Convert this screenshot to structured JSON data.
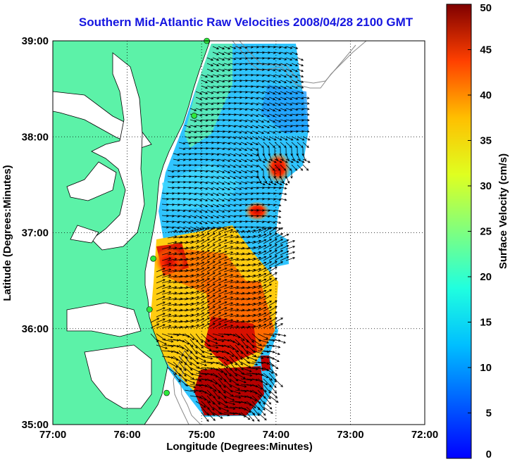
{
  "title": "Southern Mid-Atlantic Raw Velocities 2008/04/28 2100 GMT",
  "map": {
    "xlabel": "Longitude (Degrees:Minutes)",
    "ylabel": "Latitude (Degrees:Minutes)",
    "lon_range": [
      -77,
      -72
    ],
    "lat_range": [
      35,
      39
    ],
    "lon_ticks": [
      {
        "value": -77,
        "label": "77:00"
      },
      {
        "value": -76,
        "label": "76:00"
      },
      {
        "value": -75,
        "label": "75:00"
      },
      {
        "value": -74,
        "label": "74:00"
      },
      {
        "value": -73,
        "label": "73:00"
      },
      {
        "value": -72,
        "label": "72:00"
      }
    ],
    "lat_ticks": [
      {
        "value": 35,
        "label": "35:00"
      },
      {
        "value": 36,
        "label": "36:00"
      },
      {
        "value": 37,
        "label": "37:00"
      },
      {
        "value": 38,
        "label": "38:00"
      },
      {
        "value": 39,
        "label": "39:00"
      }
    ],
    "grid": "dotted",
    "land_color": "#5cf2a8",
    "ocean_color": "#ffffff",
    "station_color": "#2ee83c",
    "stations": [
      {
        "lon": -74.93,
        "lat": 39.0
      },
      {
        "lon": -75.1,
        "lat": 38.22
      },
      {
        "lon": -75.65,
        "lat": 36.73
      },
      {
        "lon": -75.7,
        "lat": 36.2
      },
      {
        "lon": -75.47,
        "lat": 35.33
      }
    ]
  },
  "colorbar": {
    "label": "Surface Velocity (cm/s)",
    "min": 0,
    "max": 50,
    "ticks": [
      "0",
      "5",
      "10",
      "15",
      "20",
      "25",
      "30",
      "35",
      "40",
      "45",
      "50"
    ],
    "colormap": "jet"
  }
}
